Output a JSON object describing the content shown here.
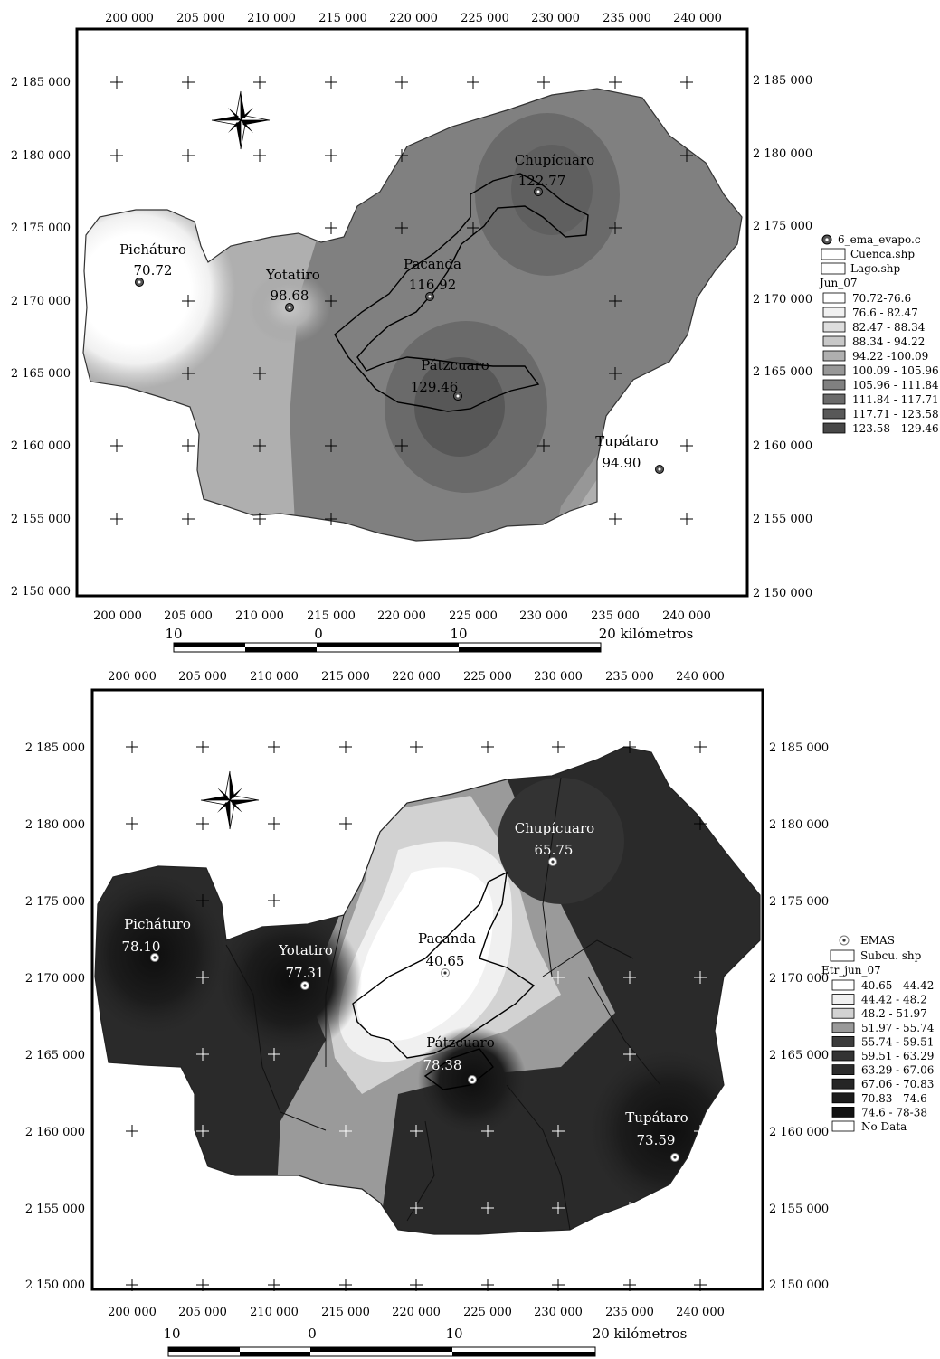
{
  "top_map": {
    "x_ticks": [
      "200 000",
      "205 000",
      "210 000",
      "215 000",
      "220 000",
      "225 000",
      "230 000",
      "235 000",
      "240 000"
    ],
    "y_ticks": [
      "2 185 000",
      "2 180 000",
      "2 175 000",
      "2 170 000",
      "2 165 000",
      "2 160 000",
      "2 155 000",
      "2 150 000"
    ],
    "stations": [
      {
        "name": "Chupícuaro",
        "value": "122.77"
      },
      {
        "name": "Picháturo",
        "value": "70.72"
      },
      {
        "name": "Yotatiro",
        "value": "98.68"
      },
      {
        "name": "Pacanda",
        "value": "116.92"
      },
      {
        "name": "Pátzcuaro",
        "value": "129.46"
      },
      {
        "name": "Tupátaro",
        "value": "94.90"
      }
    ],
    "legend": {
      "layers": [
        "6_ema_evapo.c",
        "Cuenca.shp",
        "Lago.shp"
      ],
      "title": "Jun_07",
      "classes": [
        {
          "label": "70.72-76.6",
          "color": "#ffffff"
        },
        {
          "label": "76.6 - 82.47",
          "color": "#f1f1f1"
        },
        {
          "label": "82.47 - 88.34",
          "color": "#dedede"
        },
        {
          "label": "88.34 - 94.22",
          "color": "#c8c8c8"
        },
        {
          "label": "94.22 -100.09",
          "color": "#afafaf"
        },
        {
          "label": "100.09 - 105.96",
          "color": "#979797"
        },
        {
          "label": "105.96 - 111.84",
          "color": "#808080"
        },
        {
          "label": "111.84 - 117.71",
          "color": "#6a6a6a"
        },
        {
          "label": "117.71 - 123.58",
          "color": "#585858"
        },
        {
          "label": "123.58 - 129.46",
          "color": "#474747"
        }
      ]
    },
    "scale": {
      "labels": [
        "10",
        "0",
        "10",
        "20 kilómetros"
      ]
    }
  },
  "bottom_map": {
    "x_ticks": [
      "200 000",
      "205 000",
      "210 000",
      "215 000",
      "220 000",
      "225 000",
      "230 000",
      "235 000",
      "240 000"
    ],
    "y_ticks": [
      "2 185 000",
      "2 180 000",
      "2 175 000",
      "2 170 000",
      "2 165 000",
      "2 160 000",
      "2 155 000",
      "2 150 000"
    ],
    "stations": [
      {
        "name": "Chupícuaro",
        "value": "65.75"
      },
      {
        "name": "Picháturo",
        "value": "78.10"
      },
      {
        "name": "Yotatiro",
        "value": "77.31"
      },
      {
        "name": "Pacanda",
        "value": "40.65"
      },
      {
        "name": "Pátzcuaro",
        "value": "78.38"
      },
      {
        "name": "Tupátaro",
        "value": "73.59"
      }
    ],
    "legend": {
      "layers": [
        "EMAS",
        "Subcu. shp"
      ],
      "title": "Etr_jun_07",
      "classes": [
        {
          "label": "40.65 - 44.42",
          "color": "#ffffff"
        },
        {
          "label": "44.42 - 48.2",
          "color": "#f0f0f0"
        },
        {
          "label": "48.2 - 51.97",
          "color": "#d2d2d2"
        },
        {
          "label": "51.97 - 55.74",
          "color": "#9a9a9a"
        },
        {
          "label": "55.74 - 59.51",
          "color": "#3c3c3c"
        },
        {
          "label": "59.51 - 63.29",
          "color": "#333333"
        },
        {
          "label": "63.29 - 67.06",
          "color": "#2c2c2c"
        },
        {
          "label": "67.06 - 70.83",
          "color": "#252525"
        },
        {
          "label": "70.83 - 74.6",
          "color": "#1c1c1c"
        },
        {
          "label": "74.6 - 78-38",
          "color": "#121212"
        },
        {
          "label": "No Data",
          "color": "#ffffff"
        }
      ]
    },
    "scale": {
      "labels": [
        "10",
        "0",
        "10",
        "20 kilómetros"
      ]
    }
  }
}
